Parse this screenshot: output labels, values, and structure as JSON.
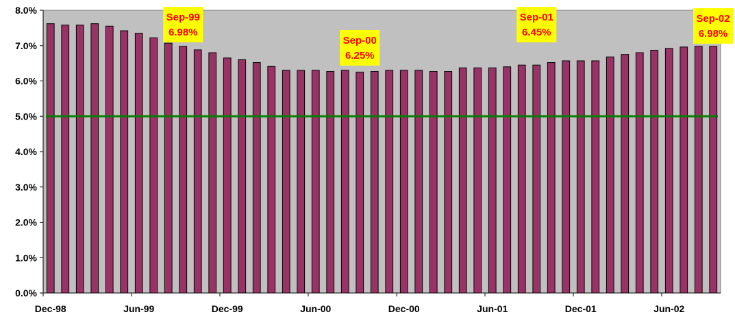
{
  "colors": {
    "plot_background": "#c0c0c0",
    "bar_fill": "#993366",
    "bar_stroke": "#000000",
    "reference_line": "#008000",
    "annotation_background": "#ffff00",
    "annotation_text": "#ff0000"
  },
  "chart_data": {
    "type": "bar",
    "title": "",
    "xlabel": "",
    "ylabel": "",
    "ylim": [
      0,
      8
    ],
    "y_ticks": [
      "0.0%",
      "1.0%",
      "2.0%",
      "3.0%",
      "4.0%",
      "5.0%",
      "6.0%",
      "7.0%",
      "8.0%"
    ],
    "y_tick_values": [
      0,
      1,
      2,
      3,
      4,
      5,
      6,
      7,
      8
    ],
    "categories": [
      "Dec-98",
      "Jan-99",
      "Feb-99",
      "Mar-99",
      "Apr-99",
      "May-99",
      "Jun-99",
      "Jul-99",
      "Aug-99",
      "Sep-99",
      "Oct-99",
      "Nov-99",
      "Dec-99",
      "Jan-00",
      "Feb-00",
      "Mar-00",
      "Apr-00",
      "May-00",
      "Jun-00",
      "Jul-00",
      "Aug-00",
      "Sep-00",
      "Oct-00",
      "Nov-00",
      "Dec-00",
      "Jan-01",
      "Feb-01",
      "Mar-01",
      "Apr-01",
      "May-01",
      "Jun-01",
      "Jul-01",
      "Aug-01",
      "Sep-01",
      "Oct-01",
      "Nov-01",
      "Dec-01",
      "Jan-02",
      "Feb-02",
      "Mar-02",
      "Apr-02",
      "May-02",
      "Jun-02",
      "Jul-02",
      "Aug-02",
      "Sep-02"
    ],
    "x_tick_labels": [
      {
        "index": 0,
        "label": "Dec-98"
      },
      {
        "index": 6,
        "label": "Jun-99"
      },
      {
        "index": 12,
        "label": "Dec-99"
      },
      {
        "index": 18,
        "label": "Jun-00"
      },
      {
        "index": 24,
        "label": "Dec-00"
      },
      {
        "index": 30,
        "label": "Jun-01"
      },
      {
        "index": 36,
        "label": "Dec-01"
      },
      {
        "index": 42,
        "label": "Jun-02"
      }
    ],
    "values": [
      7.62,
      7.58,
      7.58,
      7.62,
      7.55,
      7.42,
      7.35,
      7.22,
      7.07,
      6.98,
      6.88,
      6.8,
      6.65,
      6.6,
      6.52,
      6.41,
      6.3,
      6.3,
      6.3,
      6.27,
      6.3,
      6.25,
      6.27,
      6.3,
      6.3,
      6.3,
      6.27,
      6.27,
      6.37,
      6.37,
      6.37,
      6.4,
      6.45,
      6.45,
      6.52,
      6.57,
      6.57,
      6.57,
      6.68,
      6.75,
      6.8,
      6.87,
      6.92,
      6.96,
      6.98,
      6.98
    ],
    "reference_line": {
      "value": 5.0
    },
    "annotations": [
      {
        "index": 9,
        "month": "Sep-99",
        "value": "6.98%"
      },
      {
        "index": 21,
        "month": "Sep-00",
        "value": "6.25%"
      },
      {
        "index": 33,
        "month": "Sep-01",
        "value": "6.45%"
      },
      {
        "index": 45,
        "month": "Sep-02",
        "value": "6.98%"
      }
    ]
  }
}
